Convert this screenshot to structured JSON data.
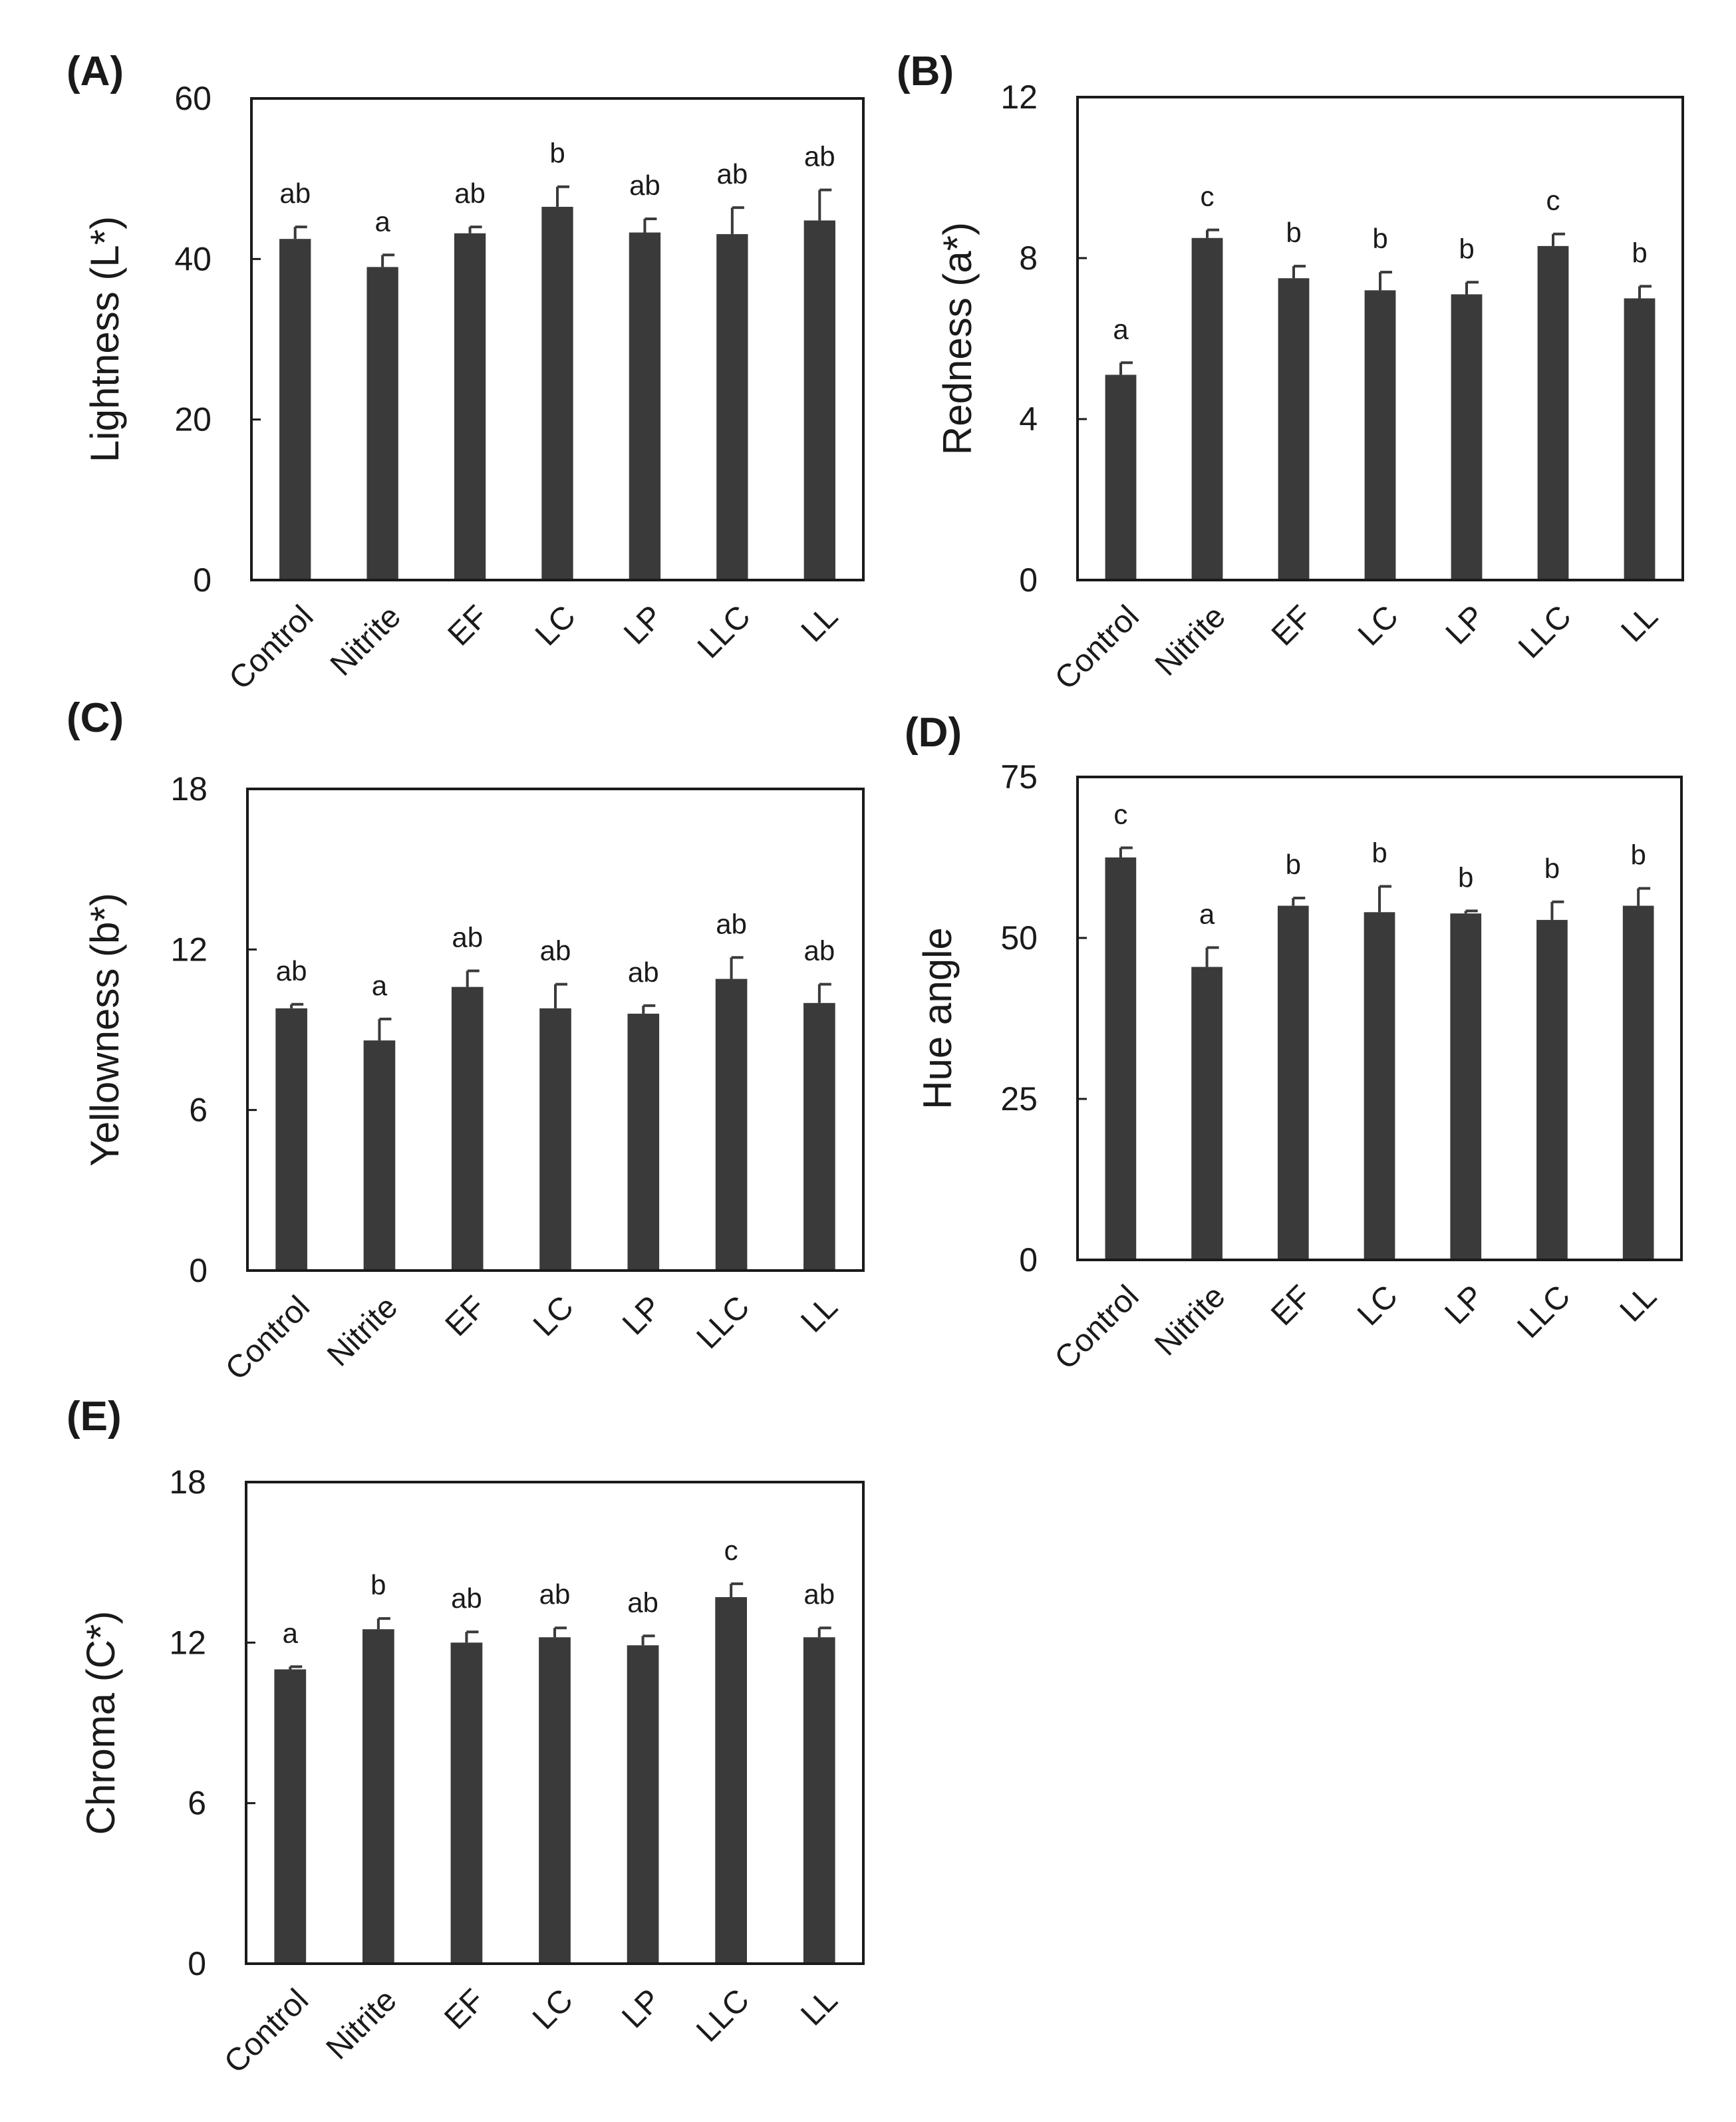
{
  "chart_data": [
    {
      "type": "bar",
      "panel_label": "(A)",
      "ylabel": "Lightness (L*)",
      "xlabel": "",
      "categories": [
        "Control",
        "Nitrite",
        "EF",
        "LC",
        "LP",
        "LLC",
        "LL"
      ],
      "values": [
        42.5,
        39.0,
        43.2,
        46.5,
        43.3,
        43.1,
        44.8
      ],
      "errors": [
        1.5,
        1.5,
        0.8,
        2.5,
        1.7,
        3.3,
        3.8
      ],
      "significance": [
        "ab",
        "a",
        "ab",
        "b",
        "ab",
        "ab",
        "ab"
      ],
      "ylim": [
        0,
        60
      ],
      "yticks": [
        0,
        20,
        40,
        60
      ],
      "ytick_labels": [
        "0",
        "20",
        "40",
        "60"
      ]
    },
    {
      "type": "bar",
      "panel_label": "(B)",
      "ylabel": "Redness (a*)",
      "xlabel": "",
      "categories": [
        "Control",
        "Nitrite",
        "EF",
        "LC",
        "LP",
        "LLC",
        "LL"
      ],
      "values": [
        5.1,
        8.5,
        7.5,
        7.2,
        7.1,
        8.3,
        7.0
      ],
      "errors": [
        0.3,
        0.2,
        0.3,
        0.45,
        0.3,
        0.3,
        0.3
      ],
      "significance": [
        "a",
        "c",
        "b",
        "b",
        "b",
        "c",
        "b"
      ],
      "ylim": [
        0,
        12
      ],
      "yticks": [
        0,
        4,
        8,
        12
      ],
      "ytick_labels": [
        "0",
        "4",
        "8",
        "12"
      ]
    },
    {
      "type": "bar",
      "panel_label": "(C)",
      "ylabel": "Yellowness (b*)",
      "xlabel": "",
      "categories": [
        "Control",
        "Nitrite",
        "EF",
        "LC",
        "LP",
        "LLC",
        "LL"
      ],
      "values": [
        9.8,
        8.6,
        10.6,
        9.8,
        9.6,
        10.9,
        10.0
      ],
      "errors": [
        0.15,
        0.8,
        0.6,
        0.9,
        0.3,
        0.8,
        0.7
      ],
      "significance": [
        "ab",
        "a",
        "ab",
        "ab",
        "ab",
        "ab",
        "ab"
      ],
      "ylim": [
        0,
        18
      ],
      "yticks": [
        0,
        6,
        12,
        18
      ],
      "ytick_labels": [
        "0",
        "6",
        "12",
        "18"
      ]
    },
    {
      "type": "bar",
      "panel_label": "(D)",
      "ylabel": "Hue angle",
      "xlabel": "",
      "categories": [
        "Control",
        "Nitrite",
        "EF",
        "LC",
        "LP",
        "LLC",
        "LL"
      ],
      "values": [
        62.5,
        45.5,
        55.0,
        54.0,
        53.8,
        52.8,
        55.0
      ],
      "errors": [
        1.5,
        3.0,
        1.2,
        4.0,
        0.4,
        2.8,
        2.7
      ],
      "significance": [
        "c",
        "a",
        "b",
        "b",
        "b",
        "b",
        "b"
      ],
      "ylim": [
        0,
        75
      ],
      "yticks": [
        0,
        25,
        50,
        75
      ],
      "ytick_labels": [
        "0",
        "25",
        "50",
        "75"
      ]
    },
    {
      "type": "bar",
      "panel_label": "(E)",
      "ylabel": "Chroma (C*)",
      "xlabel": "",
      "categories": [
        "Control",
        "Nitrite",
        "EF",
        "LC",
        "LP",
        "LLC",
        "LL"
      ],
      "values": [
        11.0,
        12.5,
        12.0,
        12.2,
        11.9,
        13.7,
        12.2
      ],
      "errors": [
        0.1,
        0.4,
        0.4,
        0.35,
        0.35,
        0.5,
        0.35
      ],
      "significance": [
        "a",
        "b",
        "ab",
        "ab",
        "ab",
        "c",
        "ab"
      ],
      "ylim": [
        0,
        18
      ],
      "yticks": [
        0,
        6,
        12,
        18
      ],
      "ytick_labels": [
        "0",
        "6",
        "12",
        "18"
      ]
    }
  ]
}
